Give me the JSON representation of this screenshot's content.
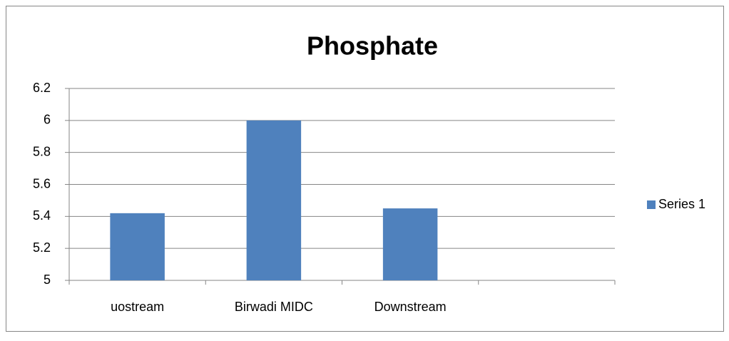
{
  "chart_data": {
    "type": "bar",
    "title": "Phosphate",
    "categories": [
      "uostream",
      "Birwadi MIDC",
      "Downstream",
      null
    ],
    "series": [
      {
        "name": "Series 1",
        "color": "#4f81bd",
        "values": [
          5.42,
          6,
          5.45,
          null
        ]
      }
    ],
    "ylim": [
      5,
      6.2
    ],
    "yticks": [
      5,
      5.2,
      5.4,
      5.6,
      5.8,
      6,
      6.2
    ],
    "grid": true,
    "legend": "right"
  }
}
